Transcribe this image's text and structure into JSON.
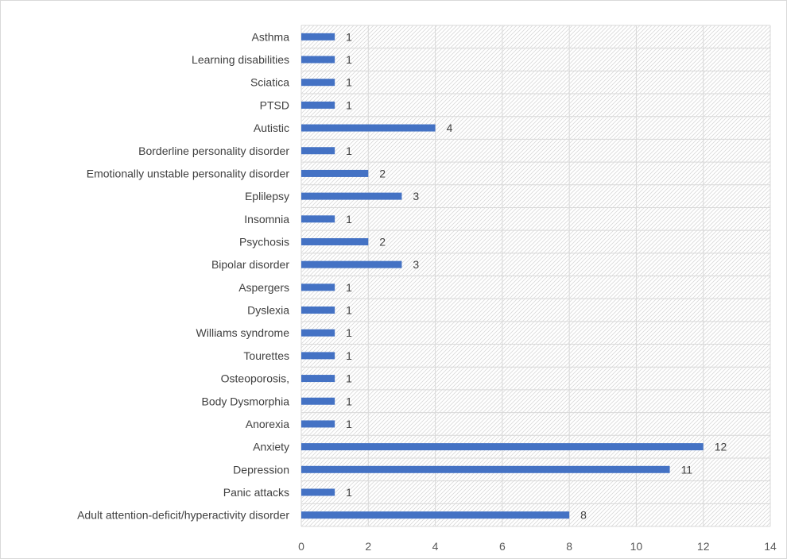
{
  "chart_data": {
    "type": "bar",
    "orientation": "horizontal",
    "title": "",
    "xlabel": "",
    "ylabel": "",
    "categories": [
      "Asthma",
      "Learning disabilities",
      "Sciatica",
      "PTSD",
      "Autistic",
      "Borderline personality disorder",
      "Emotionally unstable personality disorder",
      "Eplilepsy",
      "Insomnia",
      "Psychosis",
      "Bipolar disorder",
      "Aspergers",
      "Dyslexia",
      "Williams syndrome",
      "Tourettes",
      "Osteoporosis,",
      "Body Dysmorphia",
      "Anorexia",
      "Anxiety",
      "Depression",
      "Panic attacks",
      "Adult attention-deficit/hyperactivity disorder"
    ],
    "values": [
      1,
      1,
      1,
      1,
      4,
      1,
      2,
      3,
      1,
      2,
      3,
      1,
      1,
      1,
      1,
      1,
      1,
      1,
      12,
      11,
      1,
      8
    ],
    "xlim": [
      0,
      14
    ],
    "xticks": [
      "0",
      "2",
      "4",
      "6",
      "8",
      "10",
      "12",
      "14"
    ],
    "grid": true,
    "plot_background": "hatched",
    "data_labels": true,
    "legend": "none",
    "colors": {
      "bar": "#4472c4",
      "grid": "#d9d9d9",
      "hatch": "#d9d9d9",
      "text": "#404040"
    }
  }
}
